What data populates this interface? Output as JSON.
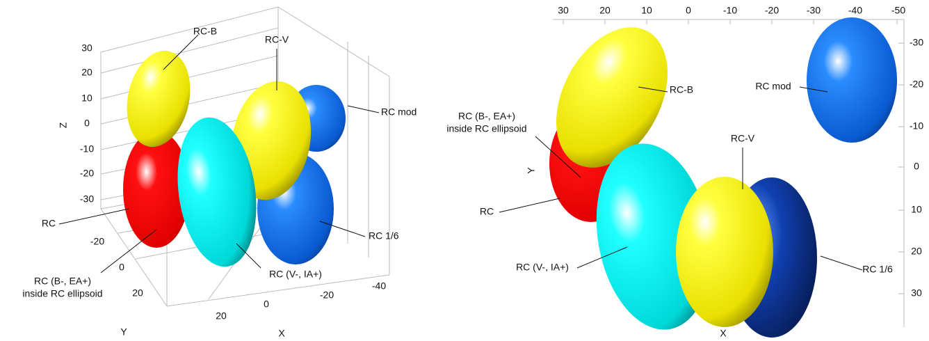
{
  "panels": [
    {
      "axes": {
        "x": {
          "label": "X",
          "ticks": [
            "20",
            "0",
            "-20",
            "-40"
          ]
        },
        "y": {
          "label": "Y",
          "ticks": [
            "-20",
            "0",
            "20"
          ]
        },
        "z": {
          "label": "Z",
          "ticks": [
            "30",
            "20",
            "10",
            "0",
            "-10",
            "-20",
            "-30"
          ]
        }
      },
      "annotations": [
        {
          "lines": [
            "RC-B"
          ]
        },
        {
          "lines": [
            "RC-V"
          ]
        },
        {
          "lines": [
            "RC mod"
          ]
        },
        {
          "lines": [
            "RC"
          ]
        },
        {
          "lines": [
            "RC 1/6"
          ]
        },
        {
          "lines": [
            "RC (B-, EA+)",
            "inside RC ellipsoid"
          ]
        },
        {
          "lines": [
            "RC (V-, IA+)"
          ]
        }
      ]
    },
    {
      "axes": {
        "x": {
          "label": "X",
          "ticks": [
            "30",
            "20",
            "10",
            "0",
            "-10",
            "-20",
            "-30",
            "-40",
            "-50"
          ]
        },
        "y": {
          "label": "Y",
          "ticks": [
            "-30",
            "-20",
            "-10",
            "0",
            "10",
            "20",
            "30"
          ]
        }
      },
      "annotations": [
        {
          "lines": [
            "RC-B"
          ]
        },
        {
          "lines": [
            "RC mod"
          ]
        },
        {
          "lines": [
            "RC (B-, EA+)",
            "inside RC ellipsoid"
          ]
        },
        {
          "lines": [
            "RC-V"
          ]
        },
        {
          "lines": [
            "RC"
          ]
        },
        {
          "lines": [
            "RC (V-, IA+)"
          ]
        },
        {
          "lines": [
            "RC 1/6"
          ]
        }
      ]
    }
  ]
}
